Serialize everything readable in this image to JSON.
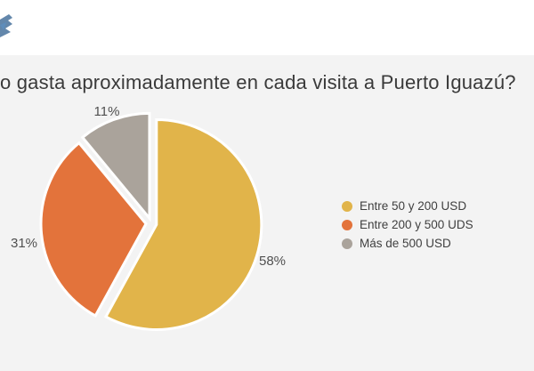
{
  "title": "o gasta aproximadamente en cada visita a Puerto Iguazú?",
  "logo_icon": "institution-logo",
  "colors": {
    "background": "#f3f3f3",
    "header": "#ffffff"
  },
  "chart_data": {
    "type": "pie",
    "categories": [
      "Entre 50 y 200 USD",
      "Entre 200 y 500 UDS",
      "Más de 500 USD"
    ],
    "values": [
      58,
      31,
      11
    ],
    "data_labels": [
      "58%",
      "31%",
      "11%"
    ],
    "colors": [
      "#e1b44a",
      "#e3733b",
      "#aaa39b"
    ],
    "legend_position": "right",
    "exploded": true
  }
}
